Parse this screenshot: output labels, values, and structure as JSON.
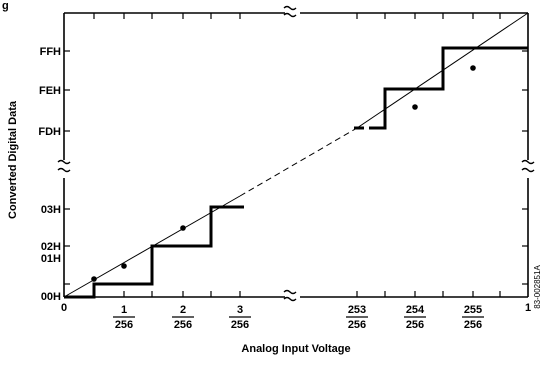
{
  "figure": {
    "title_fragment": "g",
    "xlabel": "Analog Input Voltage",
    "ylabel": "Converted Digital Data",
    "y_ticks": [
      "00H",
      "01H",
      "02H",
      "03H",
      "FDH",
      "FEH",
      "FFH"
    ],
    "x_start": "0",
    "x_end": "1",
    "x_fractions": [
      {
        "num": "1",
        "den": "256"
      },
      {
        "num": "2",
        "den": "256"
      },
      {
        "num": "3",
        "den": "256"
      },
      {
        "num": "253",
        "den": "256"
      },
      {
        "num": "254",
        "den": "256"
      },
      {
        "num": "255",
        "den": "256"
      }
    ],
    "side_code": "83-002851A",
    "break_symbol": "≈"
  }
}
